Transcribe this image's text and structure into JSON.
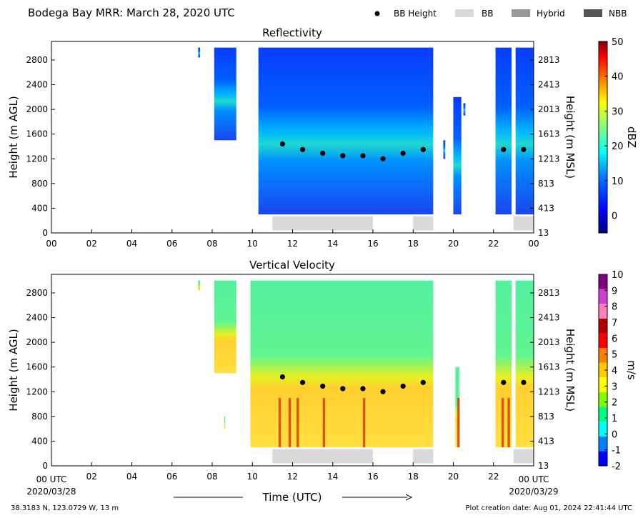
{
  "header": {
    "title": "Bodega Bay MRR:  March 28, 2020 UTC",
    "legend": [
      {
        "label": "BB Height",
        "kind": "dot",
        "color": "#000000"
      },
      {
        "label": "BB",
        "kind": "bar",
        "color": "#d9d9d9"
      },
      {
        "label": "Hybrid",
        "kind": "bar",
        "color": "#999999"
      },
      {
        "label": "NBB",
        "kind": "bar",
        "color": "#555555"
      }
    ]
  },
  "footer": {
    "coords": "38.3183 N, 123.0729 W, 13 m",
    "creation": "Plot creation date: Aug 01, 2024 22:41:44 UTC",
    "xlabel": "Time (UTC)",
    "start_hour_label": "00 UTC",
    "start_date": "2020/03/28",
    "end_hour_label": "00 UTC",
    "end_date": "2020/03/29"
  },
  "axes": {
    "ylabel_left": "Height (m AGL)",
    "ylabel_right": "Height (m MSL)",
    "yticks_left": [
      "0",
      "400",
      "800",
      "1200",
      "1600",
      "2000",
      "2400",
      "2800"
    ],
    "yticks_right": [
      "13",
      "413",
      "813",
      "1213",
      "1613",
      "2013",
      "2413",
      "2813"
    ],
    "xticks_top": [
      "00",
      "02",
      "04",
      "06",
      "08",
      "10",
      "12",
      "14",
      "16",
      "18",
      "20",
      "22",
      "00"
    ],
    "xticks_bottom": [
      "02",
      "04",
      "06",
      "08",
      "10",
      "12",
      "14",
      "16",
      "18",
      "20",
      "22"
    ]
  },
  "chart_data": [
    {
      "type": "heatmap",
      "title": "Reflectivity",
      "xlabel": "",
      "ylabel": "Height (m AGL)",
      "xlim": [
        0,
        24
      ],
      "ylim": [
        0,
        3100
      ],
      "colorbar": {
        "label": "dBZ",
        "ticks": [
          "0",
          "10",
          "20",
          "30",
          "40",
          "50"
        ],
        "range": [
          -5,
          50
        ],
        "colors": [
          "#00007f",
          "#0000ff",
          "#007fff",
          "#00ffff",
          "#7fff7f",
          "#ffff00",
          "#ff7f00",
          "#ff0000",
          "#7f0000"
        ]
      },
      "bb_height": [
        {
          "t": 11.5,
          "h": 1440
        },
        {
          "t": 12.5,
          "h": 1350
        },
        {
          "t": 13.5,
          "h": 1290
        },
        {
          "t": 14.5,
          "h": 1250
        },
        {
          "t": 15.5,
          "h": 1250
        },
        {
          "t": 16.5,
          "h": 1200
        },
        {
          "t": 17.5,
          "h": 1290
        },
        {
          "t": 18.5,
          "h": 1350
        },
        {
          "t": 22.5,
          "h": 1350
        },
        {
          "t": 23.5,
          "h": 1350
        }
      ],
      "bb_bars": [
        {
          "start": 11,
          "end": 16,
          "type": "BB"
        },
        {
          "start": 18,
          "end": 19,
          "type": "BB"
        },
        {
          "start": 23,
          "end": 24,
          "type": "BB"
        }
      ],
      "echo_regions": [
        {
          "start": 7.3,
          "end": 7.4,
          "top": 3000,
          "bottom": 2840
        },
        {
          "start": 8.1,
          "end": 9.2,
          "top": 3000,
          "bottom": 1500
        },
        {
          "start": 10.3,
          "end": 19.0,
          "top": 3000,
          "bottom": 300
        },
        {
          "start": 19.5,
          "end": 19.6,
          "top": 1500,
          "bottom": 1200
        },
        {
          "start": 20.0,
          "end": 20.4,
          "top": 2200,
          "bottom": 300
        },
        {
          "start": 20.5,
          "end": 20.6,
          "top": 2100,
          "bottom": 1900
        },
        {
          "start": 22.1,
          "end": 22.9,
          "top": 3000,
          "bottom": 300
        },
        {
          "start": 23.1,
          "end": 24.0,
          "top": 3000,
          "bottom": 300
        }
      ]
    },
    {
      "type": "heatmap",
      "title": "Vertical Velocity",
      "xlabel": "Time (UTC)",
      "ylabel": "Height (m AGL)",
      "xlim": [
        0,
        24
      ],
      "ylim": [
        0,
        3100
      ],
      "colorbar": {
        "label": "m/s",
        "ticks": [
          "-2",
          "-1",
          "0",
          "1",
          "2",
          "3",
          "4",
          "5",
          "6",
          "7",
          "8",
          "9",
          "10"
        ],
        "range": [
          -2,
          10
        ],
        "colors": [
          "#0000ff",
          "#0080ff",
          "#00ffff",
          "#00ff80",
          "#80ff00",
          "#ffff00",
          "#ffcc00",
          "#ff8000",
          "#ff0000",
          "#b40000",
          "#ff80c0",
          "#d040d0",
          "#800080"
        ]
      },
      "bb_height": [
        {
          "t": 11.5,
          "h": 1440
        },
        {
          "t": 12.5,
          "h": 1350
        },
        {
          "t": 13.5,
          "h": 1290
        },
        {
          "t": 14.5,
          "h": 1250
        },
        {
          "t": 15.5,
          "h": 1250
        },
        {
          "t": 16.5,
          "h": 1200
        },
        {
          "t": 17.5,
          "h": 1290
        },
        {
          "t": 18.5,
          "h": 1350
        },
        {
          "t": 22.5,
          "h": 1350
        },
        {
          "t": 23.5,
          "h": 1350
        }
      ],
      "bb_bars": [
        {
          "start": 11,
          "end": 16,
          "type": "BB"
        },
        {
          "start": 18,
          "end": 19,
          "type": "BB"
        },
        {
          "start": 23,
          "end": 24,
          "type": "BB"
        }
      ],
      "echo_regions": [
        {
          "start": 7.3,
          "end": 7.4,
          "top": 3000,
          "bottom": 2840
        },
        {
          "start": 8.1,
          "end": 9.2,
          "top": 3000,
          "bottom": 1500
        },
        {
          "start": 8.6,
          "end": 8.65,
          "top": 800,
          "bottom": 600
        },
        {
          "start": 9.9,
          "end": 19.0,
          "top": 3000,
          "bottom": 300
        },
        {
          "start": 20.1,
          "end": 20.3,
          "top": 1600,
          "bottom": 300
        },
        {
          "start": 22.1,
          "end": 22.9,
          "top": 3000,
          "bottom": 300
        },
        {
          "start": 23.1,
          "end": 24.0,
          "top": 3000,
          "bottom": 300
        }
      ]
    }
  ]
}
